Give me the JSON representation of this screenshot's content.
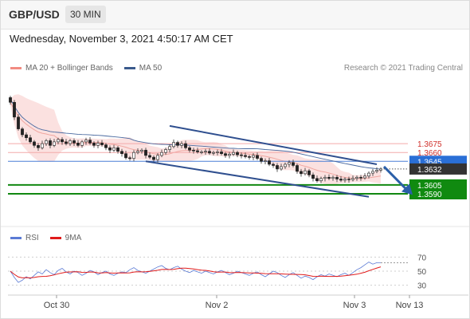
{
  "header": {
    "pair": "GBP/USD",
    "timeframe": "30 MIN"
  },
  "datetime": "Wednesday, November 3, 2021 4:50:17 AM CET",
  "legend": {
    "main": [
      {
        "label": "MA 20 + Bollinger Bands",
        "color": "#f28b82"
      },
      {
        "label": "MA 50",
        "color": "#3a5a8c"
      }
    ],
    "rsi": [
      {
        "label": "RSI",
        "color": "#5b7bd5"
      },
      {
        "label": "9MA",
        "color": "#e01b1b"
      }
    ]
  },
  "credit": "Research © 2021 Trading Central",
  "chart_data": {
    "type": "candlestick",
    "x_ticks": [
      "Oct 30",
      "Nov 2",
      "Nov 3",
      "Nov 13"
    ],
    "price_range": [
      1.354,
      1.379
    ],
    "levels": [
      {
        "label": "1.3675",
        "value": 1.3675,
        "kind": "resistance"
      },
      {
        "label": "1.3660",
        "value": 1.366,
        "kind": "resistance"
      },
      {
        "label": "1.3645",
        "value": 1.3645,
        "kind": "pivot"
      },
      {
        "label": "1.3632",
        "value": 1.3632,
        "kind": "last"
      },
      {
        "label": "1.3605",
        "value": 1.3605,
        "kind": "support"
      },
      {
        "label": "1.3590",
        "value": 1.359,
        "kind": "support"
      }
    ],
    "close_series": [
      1.3745,
      1.372,
      1.37,
      1.369,
      1.3685,
      1.3678,
      1.3672,
      1.3668,
      1.3675,
      1.368,
      1.3672,
      1.3678,
      1.3682,
      1.3678,
      1.3675,
      1.368,
      1.3676,
      1.3672,
      1.3678,
      1.3681,
      1.3676,
      1.3672,
      1.3676,
      1.3673,
      1.3668,
      1.3664,
      1.3668,
      1.3662,
      1.3658,
      1.3651,
      1.365,
      1.366,
      1.3662,
      1.3664,
      1.3655,
      1.3652,
      1.3648,
      1.3655,
      1.366,
      1.3665,
      1.367,
      1.3677,
      1.3672,
      1.3675,
      1.3668,
      1.3664,
      1.3663,
      1.3661,
      1.3661,
      1.3662,
      1.3659,
      1.366,
      1.3661,
      1.3658,
      1.3655,
      1.3657,
      1.366,
      1.3656,
      1.3655,
      1.3653,
      1.3652,
      1.3655,
      1.365,
      1.3645,
      1.3646,
      1.364,
      1.3638,
      1.3632,
      1.3636,
      1.364,
      1.3643,
      1.3638,
      1.3628,
      1.3624,
      1.3629,
      1.3622,
      1.3616,
      1.3612,
      1.3616,
      1.3618,
      1.3616,
      1.3618,
      1.3615,
      1.3613,
      1.3615,
      1.3614,
      1.3616,
      1.3618,
      1.3617,
      1.362,
      1.3625,
      1.3628,
      1.363,
      1.3632
    ],
    "ma50": [
      1.3755,
      1.374,
      1.3725,
      1.371
    ],
    "rsi_series": [
      50,
      41,
      34,
      37,
      42,
      39,
      44,
      49,
      46,
      52,
      48,
      45,
      51,
      54,
      49,
      46,
      50,
      48,
      44,
      47,
      51,
      49,
      45,
      48,
      50,
      46,
      44,
      47,
      49,
      48,
      52,
      55,
      51,
      49,
      47,
      50,
      53,
      56,
      58,
      54,
      52,
      55,
      57,
      53,
      50,
      48,
      51,
      49,
      47,
      50,
      48,
      46,
      49,
      51,
      48,
      45,
      47,
      50,
      48,
      46,
      44,
      47,
      49,
      45,
      42,
      46,
      50,
      48,
      44,
      41,
      45,
      48,
      44,
      40,
      43,
      41,
      38,
      42,
      45,
      43,
      46,
      44,
      42,
      45,
      47,
      44,
      48,
      52,
      55,
      59,
      63,
      60,
      62,
      62
    ],
    "rsi_ticks": [
      70,
      50,
      30
    ]
  }
}
